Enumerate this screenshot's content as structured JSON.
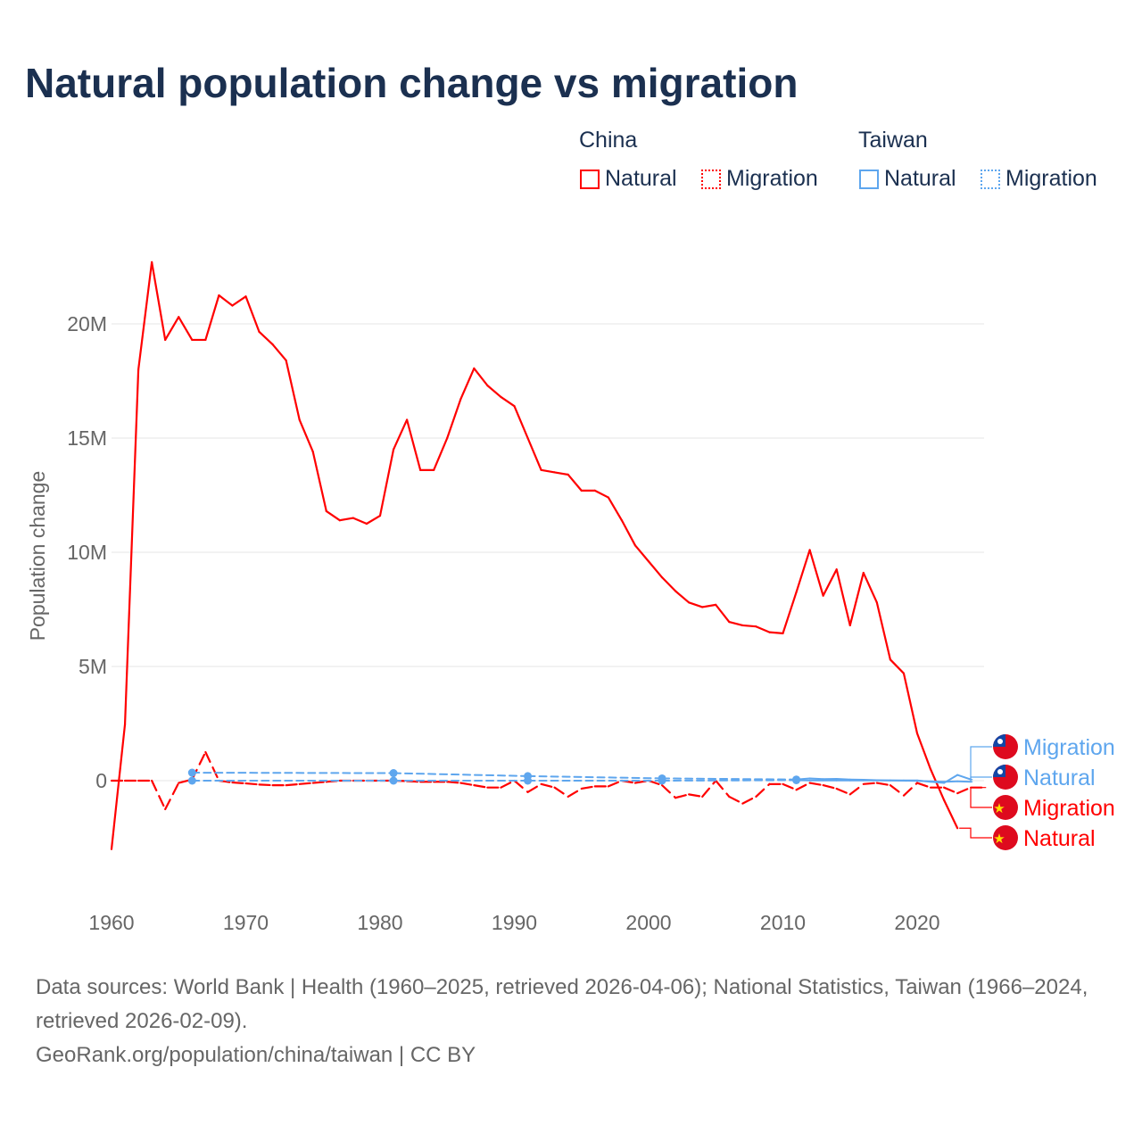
{
  "title": "Natural population change vs migration",
  "legend": {
    "groups": [
      {
        "label": "China",
        "color": "#ff0000"
      },
      {
        "label": "Taiwan",
        "color": "#5ea6ee"
      }
    ],
    "items": [
      "Natural",
      "Migration"
    ]
  },
  "footer": {
    "sources": "Data sources: World Bank | Health (1960–2025, retrieved 2026-04-06); National Statistics, Taiwan (1966–2024, retrieved 2026-02-09).",
    "credit": "GeoRank.org/population/china/taiwan | CC BY"
  },
  "chart_data": {
    "type": "line",
    "ylabel": "Population change",
    "xlabel": "",
    "xlim": [
      1960,
      2025
    ],
    "ylim": [
      -4,
      24
    ],
    "unit": "M",
    "xticks": [
      1960,
      1970,
      1980,
      1990,
      2000,
      2010,
      2020
    ],
    "yticks": [
      0,
      5,
      10,
      15,
      20
    ],
    "ytick_labels": [
      "0",
      "5M",
      "10M",
      "15M",
      "20M"
    ],
    "series": [
      {
        "name": "China Natural",
        "label": "Natural",
        "country": "China",
        "color": "#ff0000",
        "style": "solid",
        "x": [
          1960,
          1961,
          1962,
          1963,
          1964,
          1965,
          1966,
          1967,
          1968,
          1969,
          1970,
          1971,
          1972,
          1973,
          1974,
          1975,
          1976,
          1977,
          1978,
          1979,
          1980,
          1981,
          1982,
          1983,
          1984,
          1985,
          1986,
          1987,
          1988,
          1989,
          1990,
          1991,
          1992,
          1993,
          1994,
          1995,
          1996,
          1997,
          1998,
          1999,
          2000,
          2001,
          2002,
          2003,
          2004,
          2005,
          2006,
          2007,
          2008,
          2009,
          2010,
          2011,
          2012,
          2013,
          2014,
          2015,
          2016,
          2017,
          2018,
          2019,
          2020,
          2021,
          2022,
          2023
        ],
        "y": [
          -3.0,
          2.46,
          18.0,
          22.7,
          19.3,
          20.3,
          19.3,
          19.3,
          21.25,
          20.8,
          21.2,
          19.65,
          19.1,
          18.4,
          15.8,
          14.4,
          11.8,
          11.4,
          11.5,
          11.25,
          11.6,
          14.5,
          15.8,
          13.6,
          13.6,
          15.0,
          16.7,
          18.05,
          17.3,
          16.8,
          16.4,
          15.0,
          13.6,
          13.5,
          13.4,
          12.7,
          12.7,
          12.4,
          11.4,
          10.3,
          9.6,
          8.9,
          8.3,
          7.8,
          7.6,
          7.7,
          6.95,
          6.8,
          6.75,
          6.5,
          6.45,
          8.25,
          10.1,
          8.1,
          9.25,
          6.8,
          9.1,
          7.8,
          5.3,
          4.7,
          2.07,
          0.5,
          -0.85,
          -2.08
        ]
      },
      {
        "name": "China Migration",
        "label": "Migration",
        "country": "China",
        "color": "#ff0000",
        "style": "dashed",
        "x": [
          1960,
          1961,
          1962,
          1963,
          1964,
          1965,
          1966,
          1967,
          1968,
          1969,
          1970,
          1971,
          1972,
          1973,
          1974,
          1975,
          1976,
          1977,
          1978,
          1979,
          1980,
          1981,
          1982,
          1983,
          1984,
          1985,
          1986,
          1987,
          1988,
          1989,
          1990,
          1991,
          1992,
          1993,
          1994,
          1995,
          1996,
          1997,
          1998,
          1999,
          2000,
          2001,
          2002,
          2003,
          2004,
          2005,
          2006,
          2007,
          2008,
          2009,
          2010,
          2011,
          2012,
          2013,
          2014,
          2015,
          2016,
          2017,
          2018,
          2019,
          2020,
          2021,
          2022,
          2023,
          2024,
          2025
        ],
        "y": [
          0,
          0,
          0,
          0,
          -1.25,
          -0.1,
          0.05,
          1.25,
          0,
          -0.08,
          -0.12,
          -0.17,
          -0.2,
          -0.2,
          -0.15,
          -0.1,
          -0.05,
          0,
          0,
          0,
          0,
          0,
          -0.02,
          -0.05,
          -0.05,
          -0.05,
          -0.1,
          -0.2,
          -0.3,
          -0.3,
          0,
          -0.5,
          -0.15,
          -0.3,
          -0.7,
          -0.35,
          -0.25,
          -0.25,
          0,
          -0.1,
          0,
          -0.2,
          -0.75,
          -0.6,
          -0.7,
          0,
          -0.7,
          -1.0,
          -0.7,
          -0.15,
          -0.15,
          -0.4,
          -0.1,
          -0.2,
          -0.35,
          -0.6,
          -0.15,
          -0.1,
          -0.2,
          -0.65,
          -0.1,
          -0.3,
          -0.3,
          -0.55,
          -0.3,
          -0.3
        ]
      },
      {
        "name": "Taiwan Natural",
        "label": "Natural",
        "country": "Taiwan",
        "color": "#5ea6ee",
        "style": "solid",
        "x": [
          1966,
          1981,
          1991,
          2001,
          2011,
          2012,
          2013,
          2014,
          2015,
          2016,
          2017,
          2018,
          2019,
          2020,
          2021,
          2022,
          2023,
          2024
        ],
        "y": [
          0.35,
          0.33,
          0.2,
          0.1,
          0.05,
          0.1,
          0.07,
          0.08,
          0.05,
          0.04,
          0.02,
          0.01,
          0.0,
          -0.01,
          -0.03,
          -0.05,
          -0.03,
          -0.05
        ]
      },
      {
        "name": "Taiwan Migration",
        "label": "Migration",
        "country": "Taiwan",
        "color": "#5ea6ee",
        "style": "dotted",
        "x": [
          1966,
          1981,
          1991,
          2001,
          2011,
          2012,
          2013,
          2014,
          2015,
          2016,
          2017,
          2018,
          2019,
          2020,
          2021,
          2022,
          2023,
          2024
        ],
        "y": [
          0,
          0,
          0,
          0,
          0.02,
          0.01,
          0.01,
          0.01,
          0.01,
          0.01,
          0.01,
          0.01,
          0.01,
          0.01,
          -0.05,
          -0.1,
          0.25,
          0.05
        ]
      }
    ]
  }
}
